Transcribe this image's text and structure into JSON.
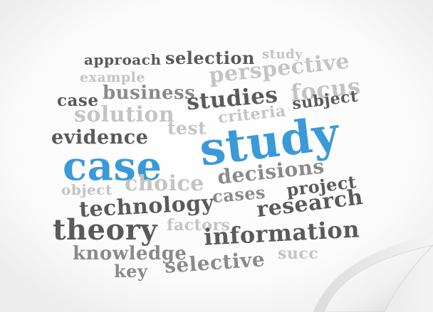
{
  "words": {
    "approach": "approach",
    "selection": "selection",
    "study_small": "study",
    "example": "example",
    "perspective": "perspective",
    "case_small": "case",
    "business": "business",
    "focus": "focus",
    "solution": "solution",
    "studies": "studies",
    "criteria": "criteria",
    "subject": "subject",
    "evidence": "evidence",
    "test": "test",
    "case_big": "case",
    "study_big": "study",
    "object": "object",
    "choice": "choice",
    "decisions": "decisions",
    "technology": "technology",
    "cases": "cases",
    "project": "project",
    "theory": "theory",
    "factors": "factors",
    "research": "research",
    "information": "information",
    "knowledge": "knowledge",
    "key": "key",
    "selective": "selective",
    "succ": "succ"
  },
  "colors": {
    "dark": "#5a5a5a",
    "mid": "#8a8a8a",
    "light": "#c4c4c4",
    "blue": "#3a9ad9"
  }
}
